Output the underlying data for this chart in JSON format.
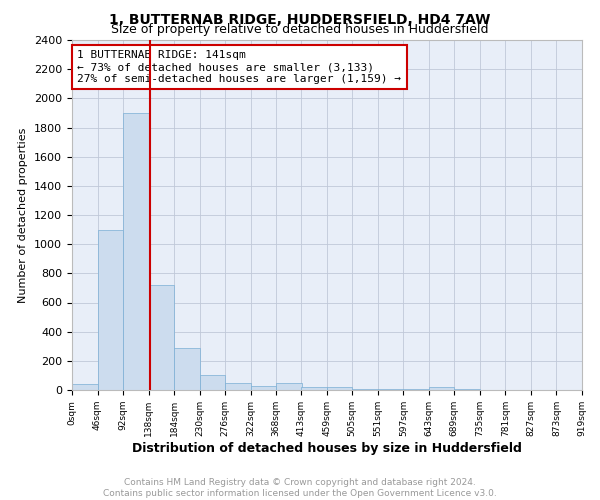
{
  "title": "1, BUTTERNAB RIDGE, HUDDERSFIELD, HD4 7AW",
  "subtitle": "Size of property relative to detached houses in Huddersfield",
  "xlabel": "Distribution of detached houses by size in Huddersfield",
  "ylabel": "Number of detached properties",
  "bar_color": "#ccdcee",
  "bar_edge_color": "#7aaed4",
  "grid_color": "#c0c8d8",
  "background_color": "#e8eef8",
  "annotation_text": "1 BUTTERNAB RIDGE: 141sqm\n← 73% of detached houses are smaller (3,133)\n27% of semi-detached houses are larger (1,159) →",
  "vline_x": 141,
  "vline_color": "#cc0000",
  "annotation_box_color": "#ffffff",
  "annotation_box_edge": "#cc0000",
  "bins": [
    0,
    46,
    92,
    138,
    184,
    230,
    276,
    322,
    368,
    413,
    459,
    505,
    551,
    597,
    643,
    689,
    735,
    781,
    827,
    873,
    919
  ],
  "bar_heights": [
    40,
    1100,
    1900,
    720,
    290,
    105,
    50,
    28,
    50,
    22,
    18,
    8,
    6,
    4,
    20,
    4,
    2,
    2,
    2,
    2
  ],
  "ylim": [
    0,
    2400
  ],
  "yticks": [
    0,
    200,
    400,
    600,
    800,
    1000,
    1200,
    1400,
    1600,
    1800,
    2000,
    2200,
    2400
  ],
  "footer_text": "Contains HM Land Registry data © Crown copyright and database right 2024.\nContains public sector information licensed under the Open Government Licence v3.0.",
  "footer_color": "#999999",
  "title_fontsize": 10,
  "subtitle_fontsize": 9
}
